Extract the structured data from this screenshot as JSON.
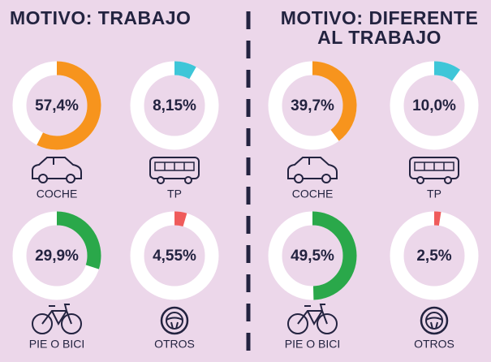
{
  "chart_data": [
    {
      "type": "donut",
      "title": "MOTIVO: TRABAJO",
      "categories": [
        "COCHE",
        "TP",
        "PIE O BICI",
        "OTROS"
      ],
      "values": [
        57.4,
        8.15,
        29.9,
        4.55
      ],
      "value_labels": [
        "57,4%",
        "8,15%",
        "29,9%",
        "4,55%"
      ],
      "colors": [
        "#f7941d",
        "#3ec6d8",
        "#2aa84a",
        "#ef5b5b"
      ]
    },
    {
      "type": "donut",
      "title": "MOTIVO: DIFERENTE AL TRABAJO",
      "categories": [
        "COCHE",
        "TP",
        "PIE O BICI",
        "OTROS"
      ],
      "values": [
        39.7,
        10.0,
        49.5,
        2.5
      ],
      "value_labels": [
        "39,7%",
        "10,0%",
        "49,5%",
        "2,5%"
      ],
      "colors": [
        "#f7941d",
        "#3ec6d8",
        "#2aa84a",
        "#ef5b5b"
      ]
    }
  ]
}
